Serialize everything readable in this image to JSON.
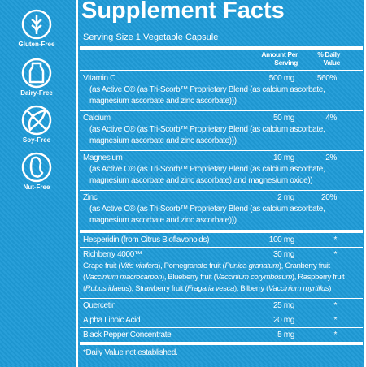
{
  "badges": [
    "Gluten-Free",
    "Dairy-Free",
    "Soy-Free",
    "Nut-Free"
  ],
  "title": "Supplement Facts",
  "serving_size": "Serving Size 1 Vegetable Capsule",
  "header": {
    "amount": "Amount Per Serving",
    "dv": "% Daily Value"
  },
  "sections": [
    [
      {
        "name": "Vitamin C",
        "amount": "500 mg",
        "dv": "560%",
        "detail": [
          "(as Active C® (as Tri-Scorb™ Proprietary Blend (as calcium ascorbate,",
          "magnesium ascorbate and zinc ascorbate)))"
        ]
      },
      {
        "name": "Calcium",
        "amount": "50 mg",
        "dv": "4%",
        "detail": [
          "(as Active C® (as Tri-Scorb™ Proprietary Blend (as calcium ascorbate,",
          "magnesium ascorbate and zinc ascorbate)))"
        ]
      },
      {
        "name": "Magnesium",
        "amount": "10 mg",
        "dv": "2%",
        "detail": [
          "(as Active C® (as Tri-Scorb™ Proprietary Blend (as calcium ascorbate,",
          "magnesium ascorbate and zinc ascorbate) and magnesium oxide))"
        ]
      },
      {
        "name": "Zinc",
        "amount": "2 mg",
        "dv": "20%",
        "detail": [
          "(as Active C® (as Tri-Scorb™ Proprietary Blend (as calcium ascorbate,",
          "magnesium ascorbate and zinc ascorbate)))"
        ]
      }
    ],
    [
      {
        "name": "Hesperidin (from Citrus Bioflavonoids)",
        "amount": "100 mg",
        "dv": "*"
      },
      {
        "name": "Richberry 4000™",
        "amount": "30 mg",
        "dv": "*",
        "detail": [
          [
            "Grape fruit (",
            {
              "text": "Vitis vinifera",
              "italic": true
            },
            "), Pomegranate fruit (",
            {
              "text": "Punica granatum",
              "italic": true
            },
            "), Cranberry fruit"
          ],
          [
            "(",
            {
              "text": "Vaccinium macrocarpon",
              "italic": true
            },
            "), Blueberry fruit (",
            {
              "text": "Vaccinium corymbosum",
              "italic": true
            },
            "), Raspberry fruit"
          ],
          [
            "(",
            {
              "text": "Rubus idaeus",
              "italic": true
            },
            "), Strawberry fruit (",
            {
              "text": "Fragaria vesca",
              "italic": true
            },
            "), Bilberry (",
            {
              "text": "Vaccinium myrtillus",
              "italic": true
            },
            ")"
          ]
        ]
      },
      {
        "name": "Quercetin",
        "amount": "25 mg",
        "dv": "*"
      },
      {
        "name": "Alpha Lipoic Acid",
        "amount": "20 mg",
        "dv": "*"
      },
      {
        "name": "Black Pepper Concentrate",
        "amount": "5 mg",
        "dv": "*"
      }
    ]
  ],
  "footnote": "*Daily Value not established."
}
